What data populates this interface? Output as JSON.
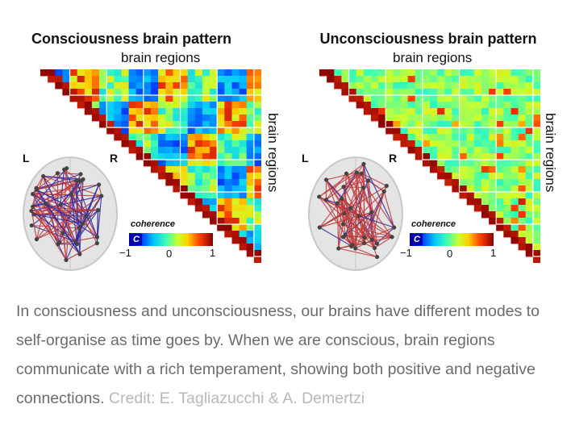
{
  "left_panel": {
    "title": "Consciousness brain pattern",
    "top_axis_label": "brain regions",
    "side_axis_label": "brain regions",
    "left_marker": "L",
    "right_marker": "R",
    "colorbar": {
      "title": "coherence",
      "symbol": "C",
      "tick_min": "−1",
      "tick_mid": "0",
      "tick_max": "1"
    }
  },
  "right_panel": {
    "title": "Unconsciousness brain pattern",
    "top_axis_label": "brain regions",
    "side_axis_label": "brain regions",
    "left_marker": "L",
    "right_marker": "R",
    "colorbar": {
      "title": "coherence",
      "symbol": "C",
      "tick_min": "−1",
      "tick_mid": "0",
      "tick_max": "1"
    }
  },
  "caption": {
    "text": "In consciousness and unconsciousness, our brains have different modes to self-organise as time goes by. When we are conscious, brain regions communicate with a rich temperament, showing both positive and negative connections.",
    "credit": "Credit: E. Tagliazucchi & A. Demertzi"
  },
  "colors": {
    "caption_text": "#6b6b6b",
    "credit_text": "#b8b8b8"
  }
}
